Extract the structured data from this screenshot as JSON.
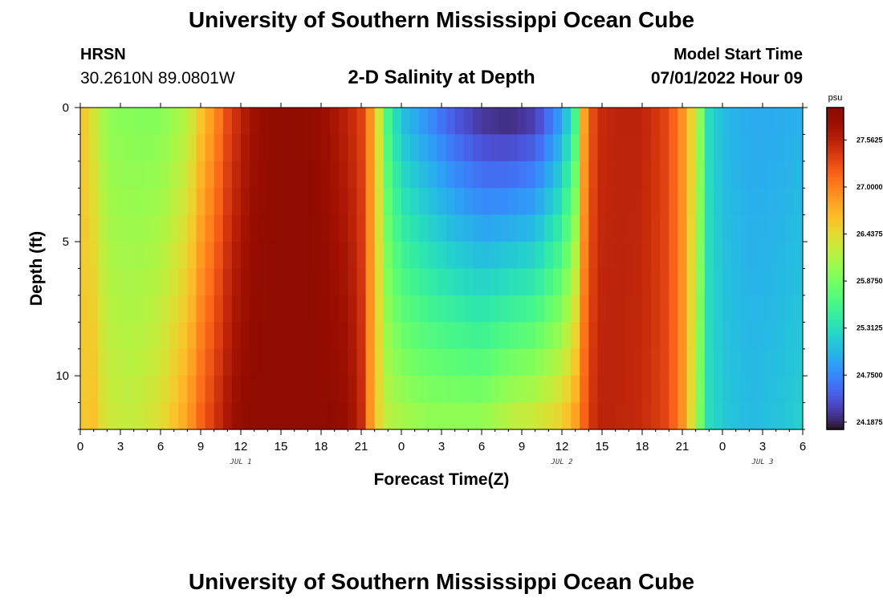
{
  "header": {
    "title": "University of Southern Mississippi Ocean Cube",
    "station": "HRSN",
    "coords": "30.2610N  89.0801W",
    "subtitle": "2-D Salinity at Depth",
    "model_start_label": "Model Start Time",
    "model_start_value": "07/01/2022 Hour 09"
  },
  "footer": {
    "title": "University of Southern Mississippi Ocean Cube"
  },
  "colorbar": {
    "unit": "psu",
    "vmin": 24.1875,
    "vmax": 27.5625,
    "min": 24.1,
    "max": 27.95,
    "tick_labels": [
      "27.5625",
      "27.0000",
      "26.4375",
      "25.8750",
      "25.3125",
      "24.7500",
      "24.1875"
    ],
    "tick_values": [
      27.5625,
      27.0,
      26.4375,
      25.875,
      25.3125,
      24.75,
      24.1875
    ]
  },
  "chart_data": {
    "type": "heatmap",
    "title": "2-D Salinity at Depth",
    "xlabel": "Forecast Time(Z)",
    "ylabel": "Depth (ft)",
    "x_tick_labels": [
      "0",
      "3",
      "6",
      "9",
      "12",
      "15",
      "18",
      "21",
      "0",
      "3",
      "6",
      "9",
      "12",
      "15",
      "18",
      "21",
      "0",
      "3",
      "6"
    ],
    "x_hours": [
      0,
      3,
      6,
      9,
      12,
      15,
      18,
      21,
      24,
      27,
      30,
      33,
      36,
      39,
      42,
      45,
      48,
      51,
      54
    ],
    "x_range_hours": [
      0,
      54
    ],
    "date_labels": [
      {
        "label": "JUL 1",
        "hour": 12
      },
      {
        "label": "JUL 2",
        "hour": 36
      },
      {
        "label": "JUL 3",
        "hour": 51
      }
    ],
    "y_tick_labels": [
      "0",
      "5",
      "10"
    ],
    "y_ticks": [
      0,
      5,
      10
    ],
    "ylim": [
      0,
      12
    ],
    "y_inverted": true,
    "colormap": "turbo",
    "time_step_hours": 0.6667,
    "depth_levels_ft": [
      0.5,
      1.5,
      2.5,
      3.5,
      4.5,
      5.5,
      6.5,
      7.5,
      8.5,
      9.5,
      10.5,
      11.5
    ],
    "salinity_psu": {
      "hours": [
        0,
        0.5,
        1,
        2,
        4,
        6,
        8,
        9,
        10,
        11,
        12,
        13,
        15,
        16,
        18,
        20,
        21,
        22,
        23,
        24,
        26,
        28,
        30,
        32,
        34,
        36,
        37,
        37.5,
        38,
        39,
        40,
        42,
        44,
        45,
        46,
        46.5,
        47,
        48,
        50,
        52,
        54
      ],
      "surface": [
        26.6,
        26.5,
        26.35,
        26.0,
        25.95,
        25.95,
        26.2,
        26.6,
        26.9,
        27.3,
        27.55,
        27.75,
        27.9,
        27.95,
        27.8,
        27.55,
        27.35,
        26.7,
        25.6,
        25.1,
        24.8,
        24.5,
        24.3,
        24.25,
        24.35,
        24.9,
        25.6,
        26.6,
        27.2,
        27.5,
        27.55,
        27.55,
        27.3,
        26.9,
        26.3,
        25.8,
        25.3,
        25.05,
        24.95,
        24.95,
        25.0
      ],
      "bottom": [
        26.5,
        26.6,
        26.6,
        26.3,
        26.25,
        26.4,
        26.8,
        27.15,
        27.4,
        27.65,
        27.85,
        27.9,
        27.95,
        27.95,
        27.9,
        27.8,
        27.5,
        26.6,
        26.2,
        26.1,
        26.0,
        26.0,
        26.0,
        26.2,
        26.3,
        26.5,
        26.8,
        27.05,
        27.4,
        27.55,
        27.55,
        27.5,
        27.3,
        26.9,
        26.2,
        25.7,
        25.3,
        25.15,
        25.05,
        25.1,
        25.2
      ]
    }
  }
}
